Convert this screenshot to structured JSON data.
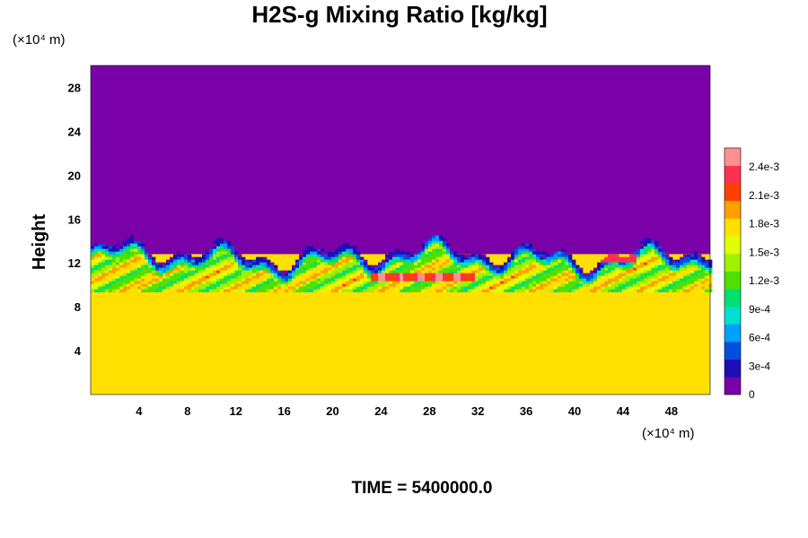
{
  "chart_data": {
    "type": "heatmap",
    "title": "H2S-g Mixing Ratio [kg/kg]",
    "ylabel": "Height",
    "xunit": "(×10⁴ m)",
    "yunit": "(×10⁴ m)",
    "xlim": [
      0,
      51.2
    ],
    "ylim": [
      0,
      30
    ],
    "xticks": [
      "4",
      "8",
      "12",
      "16",
      "20",
      "24",
      "28",
      "32",
      "36",
      "40",
      "44",
      "48"
    ],
    "yticks": [
      "4",
      "8",
      "12",
      "16",
      "20",
      "24",
      "28"
    ],
    "colorbar": {
      "min": 0,
      "max": 0.0026,
      "ticks": [
        "0",
        "3e-4",
        "6e-4",
        "9e-4",
        "1.2e-3",
        "1.5e-3",
        "1.8e-3",
        "2.1e-3",
        "2.4e-3"
      ],
      "colors": [
        "#7a00a8",
        "#1d0fb5",
        "#0050e0",
        "#00a0ff",
        "#00e0d0",
        "#00e070",
        "#50e000",
        "#a0f000",
        "#e0ff00",
        "#ffe000",
        "#ffa000",
        "#ff4000",
        "#ff3050",
        "#ff9090"
      ]
    },
    "background_value": 0.00175,
    "upper_value": 0,
    "layer_top_height": 12.8,
    "footer": "TIME = 5400000.0"
  }
}
